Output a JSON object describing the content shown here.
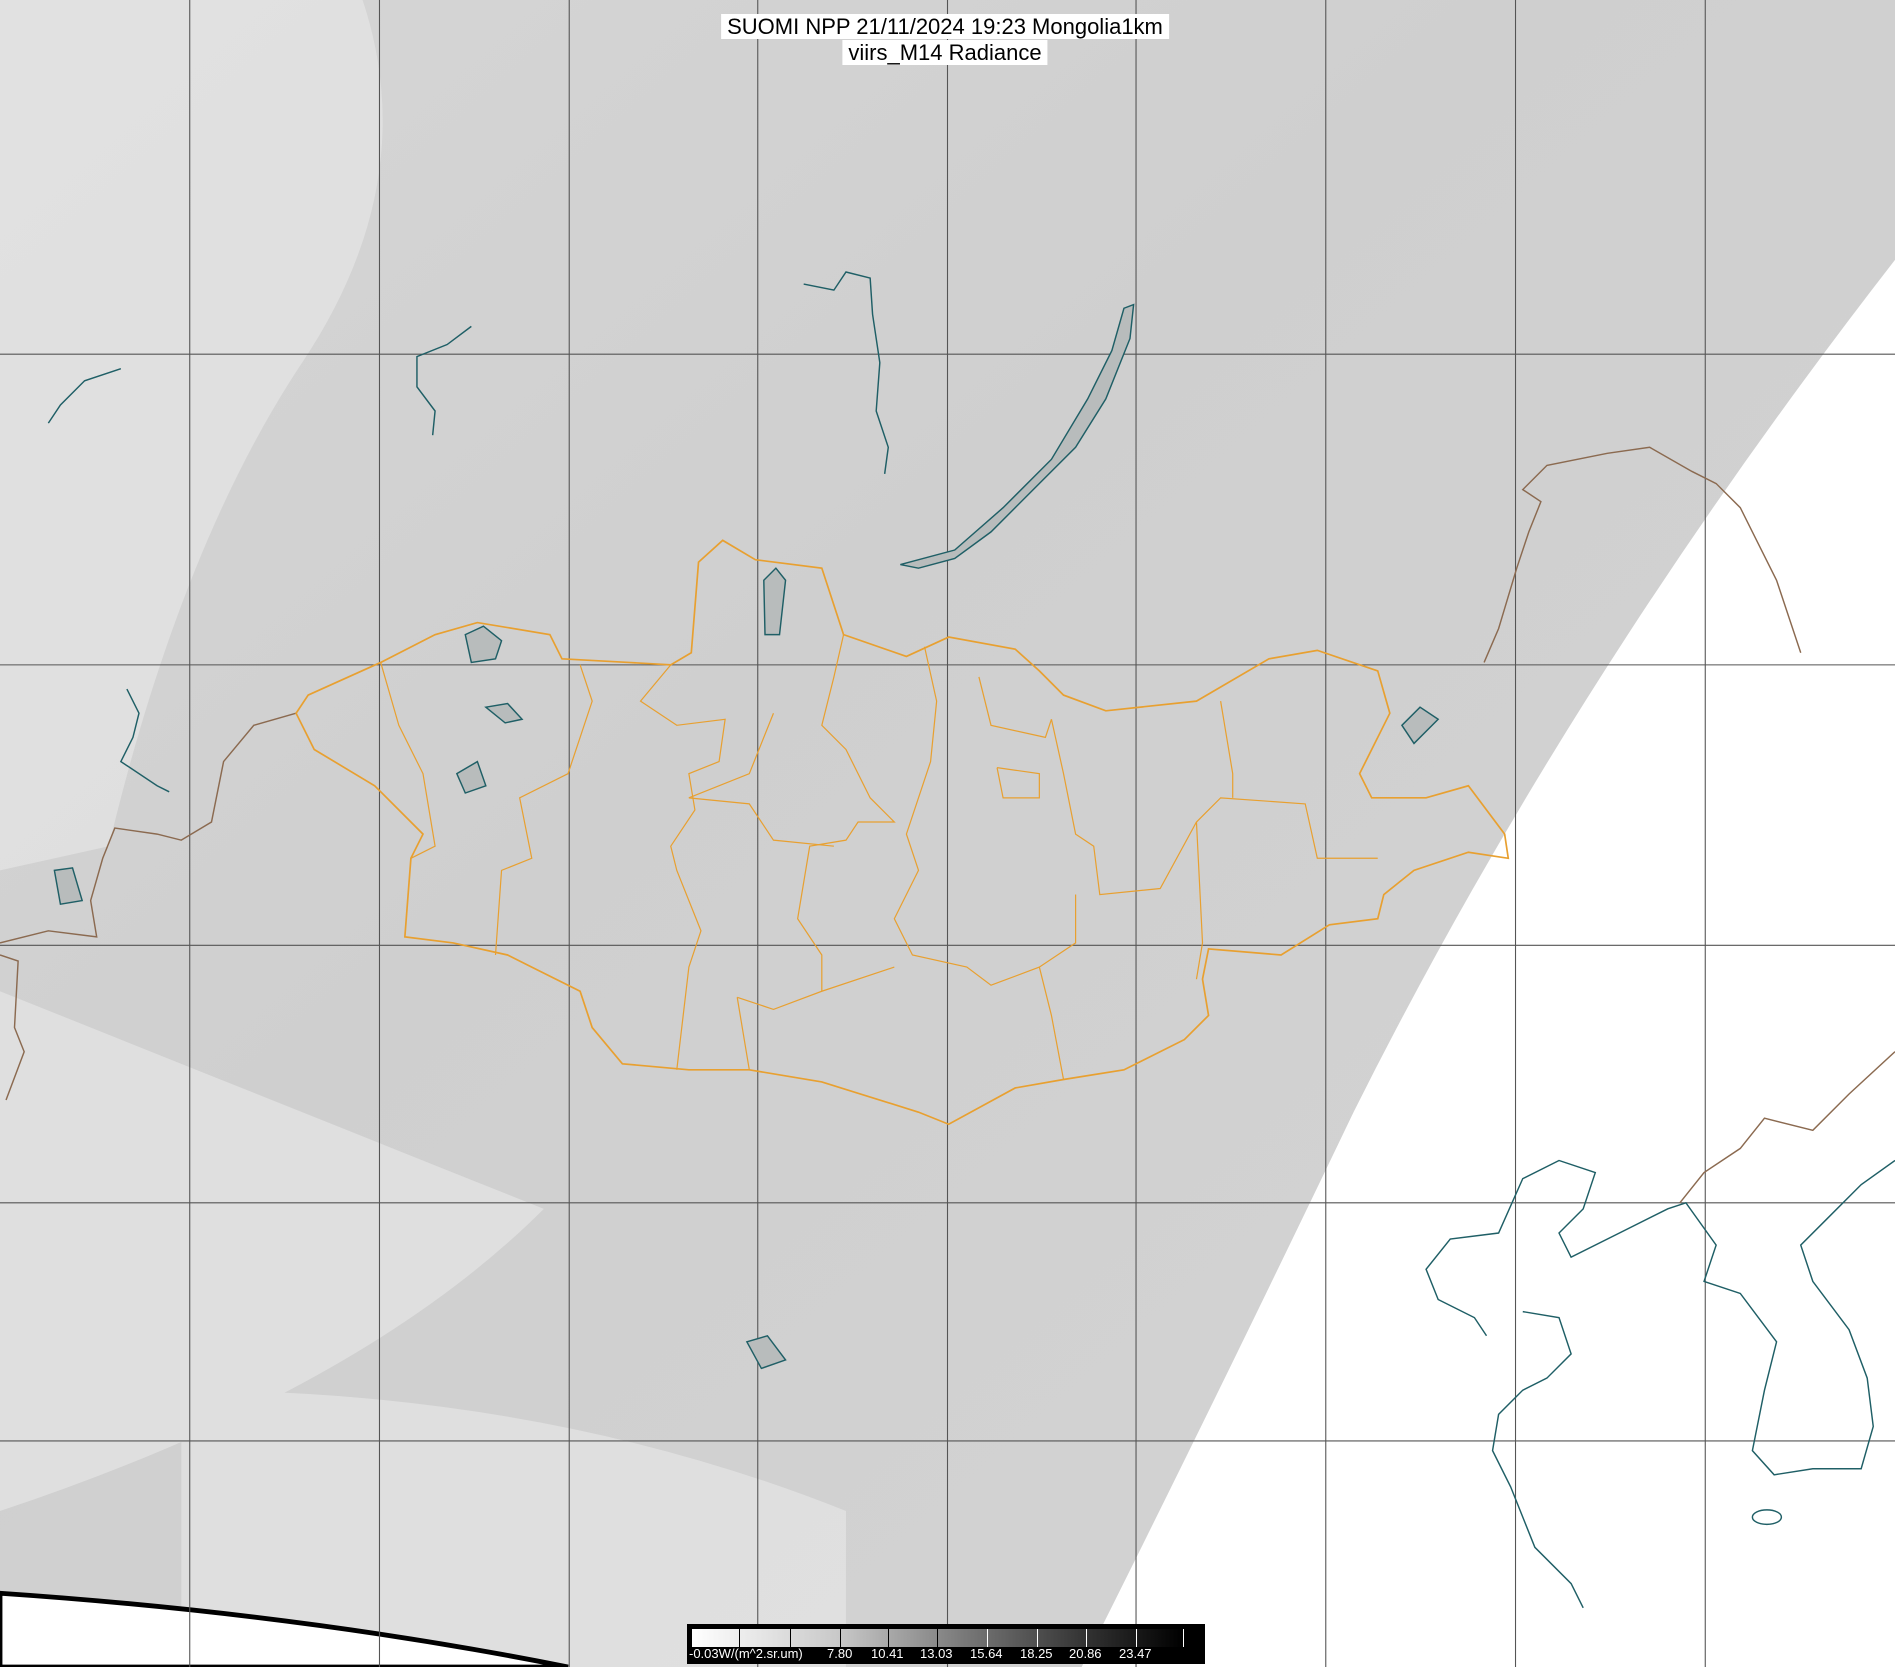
{
  "title": {
    "line1": "SUOMI NPP 21/11/2024 19:23 Mongolia1km",
    "line2": "viirs_M14 Radiance"
  },
  "colorbar": {
    "unit_label": "-0.03W/(m^2.sr.um)",
    "tick_labels": [
      "7.80",
      "10.41",
      "13.03",
      "15.64",
      "18.25",
      "20.86",
      "23.47"
    ],
    "colormap": "white-to-black grayscale"
  },
  "colors": {
    "country_border_mongolia": "#e8a030",
    "province_border": "#e8a030",
    "country_border_other": "#8b6a50",
    "coastline_lakes": "#1f5f66",
    "graticule": "#555555",
    "no_data": "#ffffff"
  }
}
